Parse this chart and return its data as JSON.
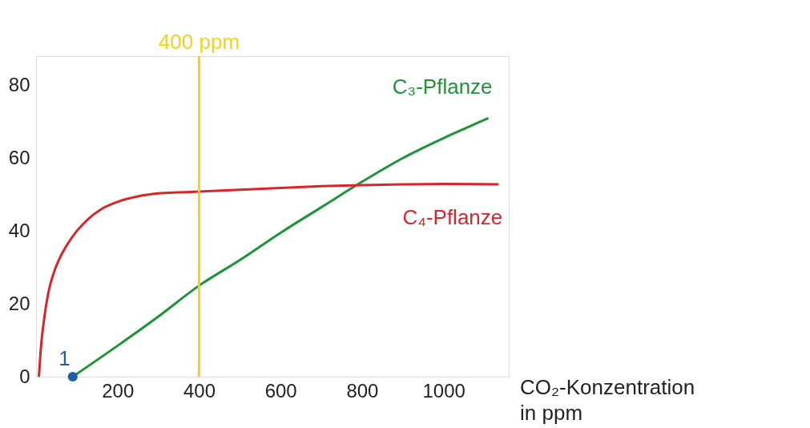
{
  "chart_data": {
    "type": "line",
    "xlabel": "CO₂-Konzentration in ppm",
    "xlim": [
      0,
      1160
    ],
    "ylim": [
      0,
      88
    ],
    "xticks": [
      200,
      400,
      600,
      800,
      1000
    ],
    "yticks": [
      0,
      20,
      40,
      60,
      80
    ],
    "grid": false,
    "marker": "none",
    "line_style": "solid",
    "series": [
      {
        "name": "C₃-Pflanze",
        "color": "#1e9338",
        "x": [
          90,
          200,
          300,
          400,
          500,
          600,
          700,
          800,
          900,
          1000,
          1060,
          1110
        ],
        "values": [
          0,
          8.5,
          16.5,
          25,
          32,
          39.5,
          46.5,
          53.5,
          60,
          65.5,
          68.5,
          71
        ]
      },
      {
        "name": "C₄-Pflanze",
        "color": "#d7262b",
        "x": [
          7,
          12,
          20,
          30,
          45,
          60,
          75,
          100,
          130,
          160,
          200,
          250,
          300,
          350,
          400,
          500,
          600,
          700,
          800,
          900,
          1000,
          1135
        ],
        "values": [
          0,
          8,
          16,
          23,
          29,
          33,
          36,
          40,
          43.5,
          46,
          48,
          49.5,
          50.3,
          50.6,
          50.8,
          51.3,
          51.8,
          52.3,
          52.6,
          52.8,
          52.9,
          52.8
        ]
      },
      {
        "type": "scatter",
        "color": "#1f5fa8",
        "x": [
          90
        ],
        "values": [
          0
        ],
        "marker": "circle"
      }
    ],
    "ref_lines": [
      {
        "axis": "x",
        "value": 400,
        "label": "400 ppm",
        "color": "#f2d21b"
      }
    ],
    "annotations": [
      {
        "text": "1",
        "x": 90,
        "y": 0
      }
    ]
  }
}
